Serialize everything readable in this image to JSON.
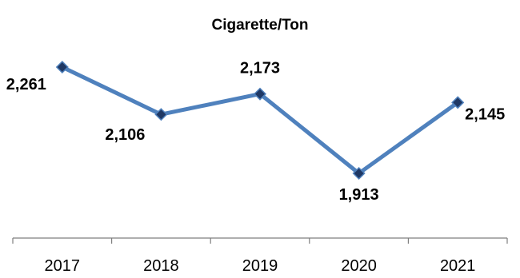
{
  "chart_data": {
    "type": "line",
    "title": "Cigarette/Ton",
    "xlabel": "",
    "ylabel": "",
    "categories": [
      "2017",
      "2018",
      "2019",
      "2020",
      "2021"
    ],
    "series": [
      {
        "values": [
          2261,
          2106,
          2173,
          1913,
          2145
        ],
        "labels": [
          "2,261",
          "2,106",
          "2,173",
          "1,913",
          "2,145"
        ],
        "color": "#4F81BD",
        "marker_color": "#1F3864"
      }
    ],
    "ylim": [
      1913,
      2261
    ],
    "grid": false,
    "legend": "none"
  }
}
